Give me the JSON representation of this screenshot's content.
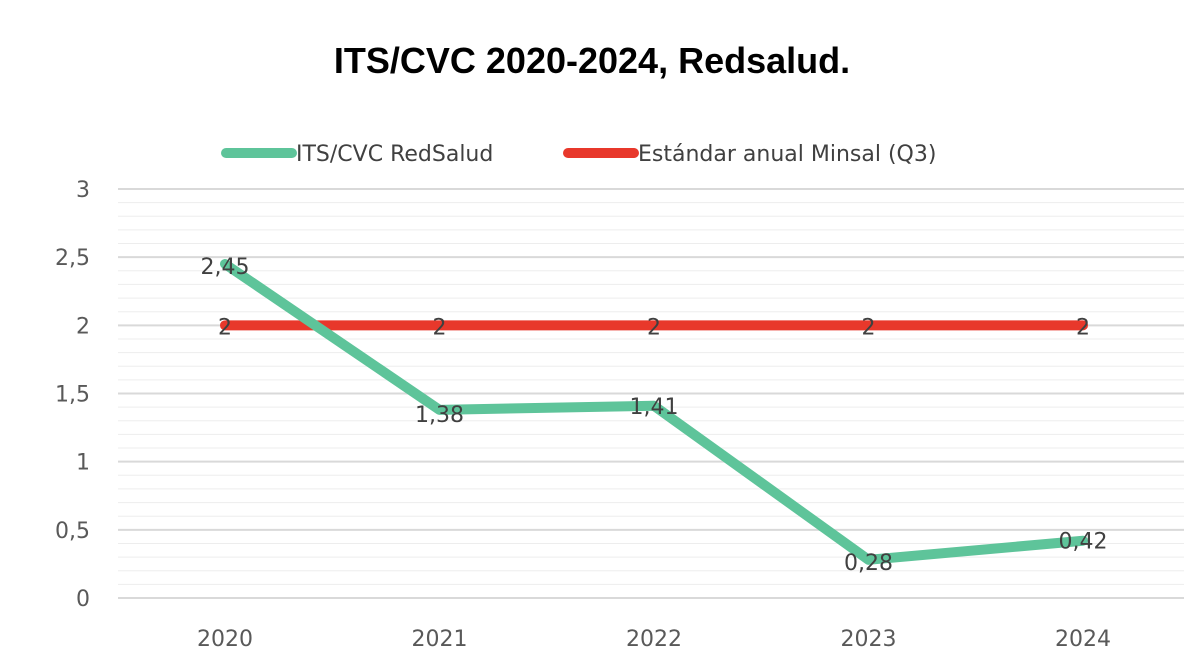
{
  "chart_data": {
    "type": "line",
    "title": "ITS/CVC 2020-2024, Redsalud.",
    "categories": [
      "2020",
      "2021",
      "2022",
      "2023",
      "2024"
    ],
    "series": [
      {
        "name": "ITS/CVC RedSalud",
        "values": [
          2.45,
          1.38,
          1.41,
          0.28,
          0.42
        ],
        "labels": [
          "2,45",
          "1,38",
          "1,41",
          "0,28",
          "0,42"
        ],
        "color": "#5EC49A"
      },
      {
        "name": "Estándar anual Minsal (Q3)",
        "values": [
          2,
          2,
          2,
          2,
          2
        ],
        "labels": [
          "2",
          "2",
          "2",
          "2",
          "2"
        ],
        "color": "#E8382B"
      }
    ],
    "ylim": [
      0,
      3
    ],
    "yticks": [
      0,
      0.5,
      1,
      1.5,
      2,
      2.5,
      3
    ],
    "ytick_labels": [
      "0",
      "0,5",
      "1",
      "1,5",
      "2",
      "2,5",
      "3"
    ],
    "grid": true,
    "legend": "top"
  }
}
